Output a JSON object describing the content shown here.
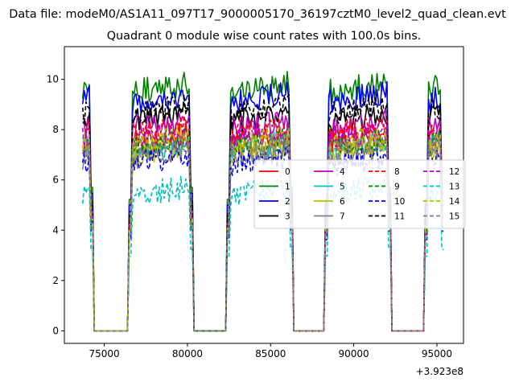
{
  "figure": {
    "suptitle": "Data file: modeM0/AS1A11_097T17_9000005170_36197cztM0_level2_quad_clean.evt"
  },
  "chart_data": {
    "type": "line",
    "title": "Quadrant 0 module wise count rates with 100.0s bins.",
    "xlabel": "",
    "ylabel": "",
    "x_offset_label": "+3.923e8",
    "xlim": [
      72600,
      96600
    ],
    "ylim": [
      -0.5,
      11.3
    ],
    "xticks": [
      75000,
      80000,
      85000,
      90000,
      95000
    ],
    "xtick_labels": [
      "75000",
      "80000",
      "85000",
      "90000",
      "95000"
    ],
    "yticks": [
      0,
      2,
      4,
      6,
      8,
      10
    ],
    "ytick_labels": [
      "0",
      "2",
      "4",
      "6",
      "8",
      "10"
    ],
    "grid": false,
    "legend_position": "center-right",
    "legend_columns": 4,
    "segments": [
      [
        73700,
        74300
      ],
      [
        76500,
        80300
      ],
      [
        82400,
        86300
      ],
      [
        88300,
        92200
      ],
      [
        94300,
        95400
      ]
    ],
    "gap_x": [
      [
        74300,
        76500
      ],
      [
        80300,
        82400
      ],
      [
        86300,
        88300
      ],
      [
        92200,
        94300
      ]
    ],
    "series": [
      {
        "name": "0",
        "color": "#ff0000",
        "style": "solid",
        "level": 7.5
      },
      {
        "name": "1",
        "color": "#008000",
        "style": "solid",
        "level": 9.5
      },
      {
        "name": "2",
        "color": "#0000ff",
        "style": "solid",
        "level": 9.1
      },
      {
        "name": "3",
        "color": "#000000",
        "style": "solid",
        "level": 8.3
      },
      {
        "name": "4",
        "color": "#bf00bf",
        "style": "solid",
        "level": 8.0
      },
      {
        "name": "5",
        "color": "#00bfbf",
        "style": "solid",
        "level": 7.2
      },
      {
        "name": "6",
        "color": "#bfbf00",
        "style": "solid",
        "level": 7.0
      },
      {
        "name": "7",
        "color": "#808080",
        "style": "solid",
        "level": 6.9
      },
      {
        "name": "8",
        "color": "#ff0000",
        "style": "dashed",
        "level": 7.8
      },
      {
        "name": "9",
        "color": "#008000",
        "style": "dashed",
        "level": 7.3
      },
      {
        "name": "10",
        "color": "#0000ff",
        "style": "dashed",
        "level": 6.6
      },
      {
        "name": "11",
        "color": "#000000",
        "style": "dashed",
        "level": 8.6
      },
      {
        "name": "12",
        "color": "#bf00bf",
        "style": "dashed",
        "level": 7.6
      },
      {
        "name": "13",
        "color": "#00bfbf",
        "style": "dashed",
        "level": 5.4
      },
      {
        "name": "14",
        "color": "#bfbf00",
        "style": "dashed",
        "level": 7.4
      },
      {
        "name": "15",
        "color": "#808080",
        "style": "dashed",
        "level": 7.1
      }
    ]
  }
}
